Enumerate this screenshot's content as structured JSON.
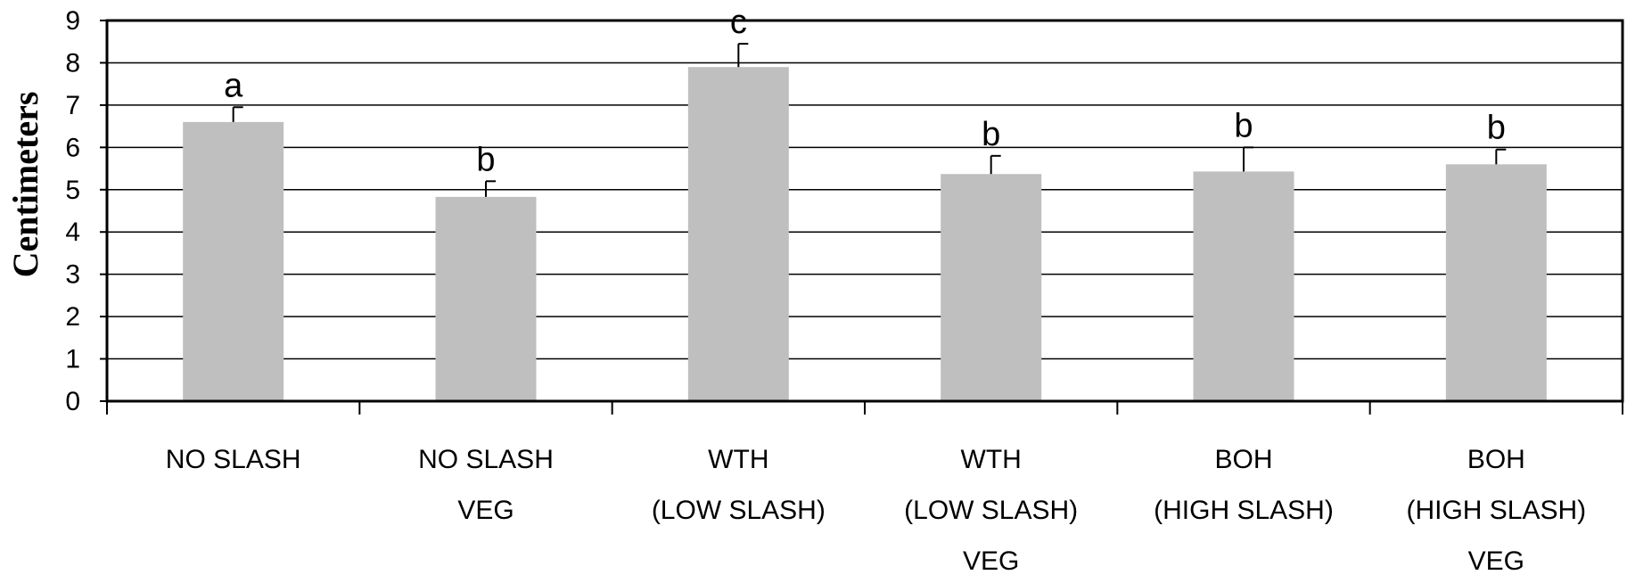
{
  "chart_data": {
    "type": "bar",
    "title": "",
    "xlabel": "",
    "ylabel": "Centimeters",
    "ylim": [
      0,
      9
    ],
    "yticks": [
      0,
      1,
      2,
      3,
      4,
      5,
      6,
      7,
      8,
      9
    ],
    "grid": true,
    "categories": [
      [
        "NO SLASH"
      ],
      [
        "NO SLASH",
        "VEG"
      ],
      [
        "WTH",
        "(LOW SLASH)"
      ],
      [
        "WTH",
        "(LOW SLASH)",
        "VEG"
      ],
      [
        "BOH",
        "(HIGH SLASH)"
      ],
      [
        "BOH",
        "(HIGH SLASH)",
        "VEG"
      ]
    ],
    "values": [
      6.6,
      4.83,
      7.9,
      5.37,
      5.43,
      5.6
    ],
    "error_upper": [
      6.95,
      5.2,
      8.45,
      5.8,
      6.0,
      5.95
    ],
    "significance_labels": [
      "a",
      "b",
      "c",
      "b",
      "b",
      "b"
    ],
    "bar_color": "#bfbfbf",
    "grid_color": "#000000"
  }
}
